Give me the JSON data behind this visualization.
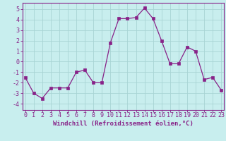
{
  "x": [
    0,
    1,
    2,
    3,
    4,
    5,
    6,
    7,
    8,
    9,
    10,
    11,
    12,
    13,
    14,
    15,
    16,
    17,
    18,
    19,
    20,
    21,
    22,
    23
  ],
  "y": [
    -1.5,
    -3.0,
    -3.5,
    -2.5,
    -2.5,
    -2.5,
    -1.0,
    -0.8,
    -2.0,
    -2.0,
    1.8,
    4.1,
    4.1,
    4.2,
    5.1,
    4.1,
    2.0,
    -0.2,
    -0.2,
    1.4,
    1.0,
    -1.7,
    -1.5,
    -2.7
  ],
  "line_color": "#882288",
  "marker": "s",
  "marker_size": 2.5,
  "bg_color": "#c8eeee",
  "grid_color": "#a8d4d4",
  "xlabel": "Windchill (Refroidissement éolien,°C)",
  "xlim": [
    -0.3,
    23.3
  ],
  "ylim": [
    -4.6,
    5.6
  ],
  "yticks": [
    -4,
    -3,
    -2,
    -1,
    0,
    1,
    2,
    3,
    4,
    5
  ],
  "xticks": [
    0,
    1,
    2,
    3,
    4,
    5,
    6,
    7,
    8,
    9,
    10,
    11,
    12,
    13,
    14,
    15,
    16,
    17,
    18,
    19,
    20,
    21,
    22,
    23
  ],
  "tick_color": "#882288",
  "label_fontsize": 6.5,
  "tick_fontsize": 6.0
}
